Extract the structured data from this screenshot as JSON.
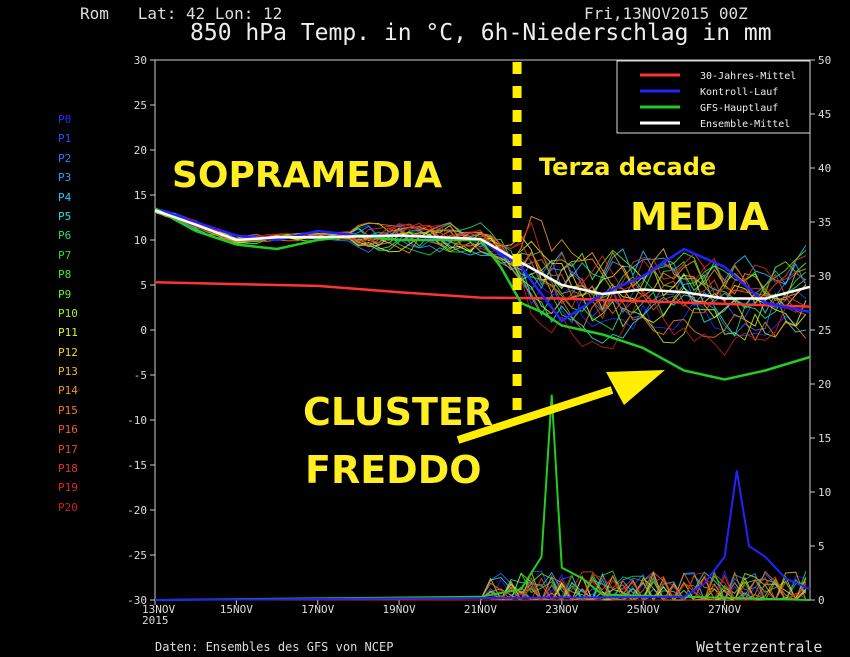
{
  "header": {
    "location": "Rom   Lat: 42 Lon: 12",
    "date": "Fri,13NOV2015 00Z",
    "title": "850 hPa Temp. in °C, 6h-Niederschlag in mm"
  },
  "footer": {
    "source": "Daten: Ensembles des GFS von NCEP",
    "brand": "Wetterzentrale"
  },
  "members": [
    {
      "label": "P0",
      "color": "#2b2bff"
    },
    {
      "label": "P1",
      "color": "#2e4dff"
    },
    {
      "label": "P2",
      "color": "#2f7bff"
    },
    {
      "label": "P3",
      "color": "#2aa3ff"
    },
    {
      "label": "P4",
      "color": "#29c6ff"
    },
    {
      "label": "P5",
      "color": "#2de0e0"
    },
    {
      "label": "P6",
      "color": "#22e07a"
    },
    {
      "label": "P7",
      "color": "#22e04a"
    },
    {
      "label": "P8",
      "color": "#3bef22"
    },
    {
      "label": "P9",
      "color": "#6cf522"
    },
    {
      "label": "P10",
      "color": "#a4f522"
    },
    {
      "label": "P11",
      "color": "#e4f522"
    },
    {
      "label": "P12",
      "color": "#f5d822"
    },
    {
      "label": "P13",
      "color": "#f5b822"
    },
    {
      "label": "P14",
      "color": "#f59622"
    },
    {
      "label": "P15",
      "color": "#f57a22"
    },
    {
      "label": "P16",
      "color": "#f06022"
    },
    {
      "label": "P17",
      "color": "#e84a22"
    },
    {
      "label": "P18",
      "color": "#e03a22"
    },
    {
      "label": "P19",
      "color": "#d82a22"
    },
    {
      "label": "P20",
      "color": "#c81e1e"
    }
  ],
  "annotations": {
    "sopramedia": "SOPRAMEDIA",
    "terza": "Terza decade",
    "media": "MEDIA",
    "cluster": "CLUSTER",
    "freddo": "FREDDO"
  },
  "chart_data": {
    "type": "line",
    "xlabel": "",
    "ylabel": "",
    "x_ticks": [
      {
        "day": 13,
        "label": "13NOV",
        "sub": "2015"
      },
      {
        "day": 15,
        "label": "15NOV"
      },
      {
        "day": 17,
        "label": "17NOV"
      },
      {
        "day": 19,
        "label": "19NOV"
      },
      {
        "day": 21,
        "label": "21NOV"
      },
      {
        "day": 23,
        "label": "23NOV"
      },
      {
        "day": 25,
        "label": "25NOV"
      },
      {
        "day": 27,
        "label": "27NOV"
      }
    ],
    "xlim": [
      13,
      29.1
    ],
    "y_left": {
      "ylim": [
        -30,
        30
      ],
      "ticks": [
        30,
        25,
        20,
        15,
        10,
        5,
        0,
        -5,
        -10,
        -15,
        -20,
        -25,
        -30
      ]
    },
    "y_right": {
      "ylim": [
        0,
        50
      ],
      "ticks": [
        50,
        45,
        40,
        35,
        30,
        25,
        20,
        15,
        10,
        5,
        0
      ]
    },
    "marker_day": 21.9,
    "legend": {
      "position": "top-right",
      "entries": [
        {
          "label": "30-Jahres-Mittel",
          "color": "#ff3333"
        },
        {
          "label": "Kontroll-Lauf",
          "color": "#2222ff"
        },
        {
          "label": "GFS-Hauptlauf",
          "color": "#22cc22"
        },
        {
          "label": "Ensemble-Mittel",
          "color": "#ffffff"
        }
      ]
    },
    "series": [
      {
        "name": "30-Jahres-Mittel",
        "color": "#ff3333",
        "x": [
          13,
          15,
          17,
          19,
          21,
          23,
          25,
          27,
          29.1
        ],
        "values": [
          5.3,
          5.1,
          4.9,
          4.2,
          3.6,
          3.5,
          3.2,
          2.9,
          2.6
        ]
      },
      {
        "name": "Kontroll-Lauf",
        "color": "#2222ff",
        "x": [
          13,
          14,
          15,
          16,
          17,
          18,
          19,
          20,
          21,
          22,
          23,
          24,
          25,
          26,
          27,
          28,
          29.1
        ],
        "values": [
          13.5,
          12,
          10.5,
          10,
          11,
          10.5,
          10.5,
          10.2,
          10,
          7,
          1,
          4,
          6,
          9,
          7,
          3,
          2
        ]
      },
      {
        "name": "GFS-Hauptlauf",
        "color": "#22cc22",
        "x": [
          13,
          14,
          15,
          16,
          17,
          18,
          19,
          20,
          21,
          21.5,
          22,
          22.5,
          23,
          24,
          25,
          26,
          27,
          28,
          29.1
        ],
        "values": [
          13.5,
          11,
          9.5,
          9,
          10,
          10.5,
          10,
          10,
          10,
          7,
          3,
          2,
          0.5,
          -0.5,
          -2,
          -4.5,
          -5.5,
          -4.5,
          -3
        ]
      },
      {
        "name": "Ensemble-Mittel",
        "color": "#ffffff",
        "x": [
          13,
          14,
          15,
          16,
          17,
          18,
          19,
          20,
          21,
          22,
          23,
          24,
          25,
          26,
          27,
          28,
          29.1
        ],
        "values": [
          13.3,
          11.7,
          10,
          10.3,
          10.3,
          10.4,
          10.5,
          10.3,
          10.1,
          7.5,
          5,
          4,
          4.5,
          4.2,
          3.5,
          3.5,
          4.8
        ]
      }
    ],
    "precipitation": [
      {
        "name": "GFS-Hauptlauf",
        "color": "#22cc22",
        "x": [
          13,
          21,
          22,
          22.5,
          22.75,
          23,
          23.5,
          24,
          29.1
        ],
        "values": [
          0,
          0.3,
          1,
          4,
          19,
          3,
          2,
          0.5,
          0
        ]
      },
      {
        "name": "Kontroll-Lauf",
        "color": "#2222ff",
        "x": [
          13,
          26,
          26.5,
          27,
          27.3,
          27.6,
          28,
          28.5,
          29.1
        ],
        "values": [
          0,
          0.3,
          1.5,
          4,
          12,
          5,
          4,
          2,
          1
        ]
      }
    ]
  }
}
